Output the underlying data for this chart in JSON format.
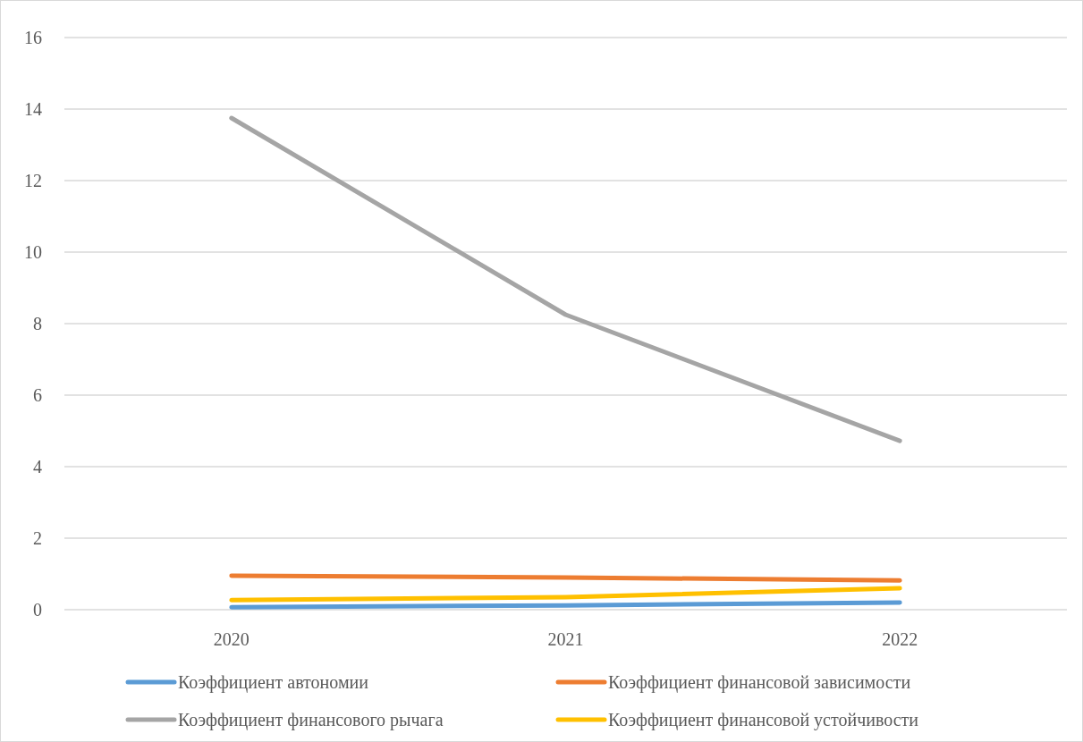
{
  "chart_data": {
    "type": "line",
    "categories": [
      "2020",
      "2021",
      "2022"
    ],
    "series": [
      {
        "name": "Коэффициент автономии",
        "color": "#5b9bd5",
        "values": [
          0.07,
          0.12,
          0.2
        ]
      },
      {
        "name": "Коэффициент финансовой зависимости",
        "color": "#ed7d31",
        "values": [
          0.95,
          0.9,
          0.82
        ]
      },
      {
        "name": "Коэффициент финансового рычага",
        "color": "#a5a5a5",
        "values": [
          13.75,
          8.25,
          4.72
        ]
      },
      {
        "name": "Коэффициент финансовой устойчивости",
        "color": "#ffc000",
        "values": [
          0.27,
          0.35,
          0.6
        ]
      }
    ],
    "ylim": [
      0,
      16
    ],
    "yticks": [
      0,
      2,
      4,
      6,
      8,
      10,
      12,
      14,
      16
    ],
    "grid": "y",
    "legend": "bottom",
    "marker": "none",
    "line_style": "solid"
  }
}
